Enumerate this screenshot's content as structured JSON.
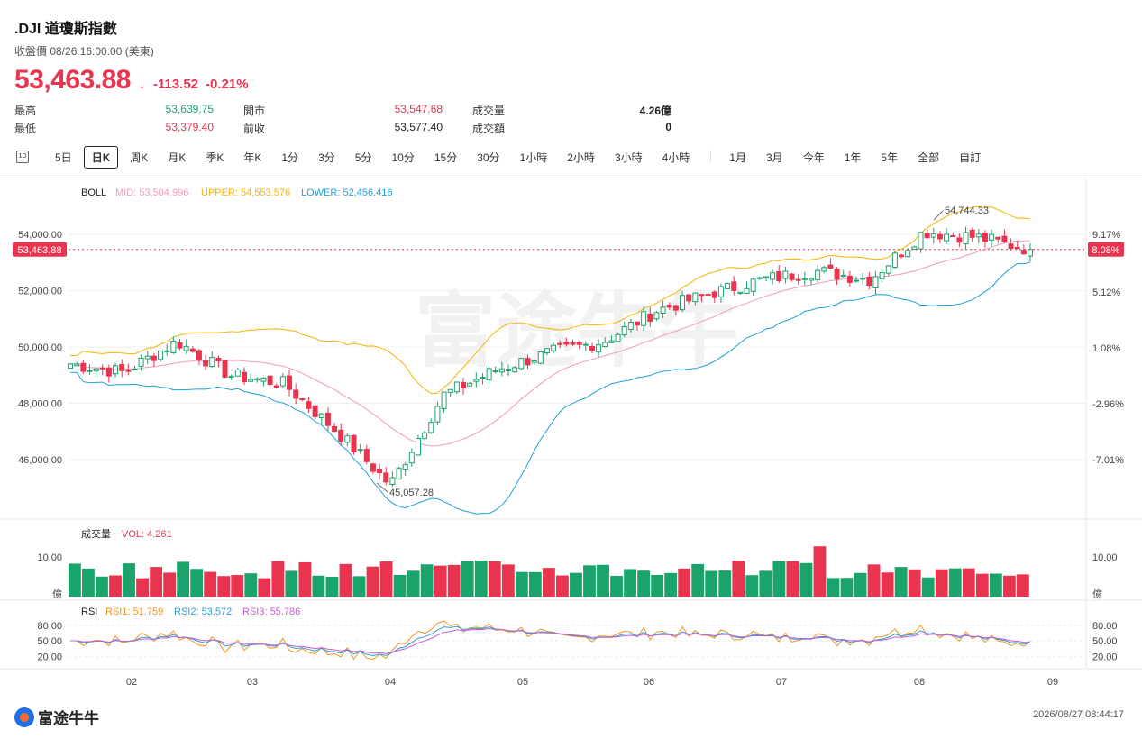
{
  "header": {
    "title": ".DJI  道瓊斯指數",
    "subtitle": "收盤價 08/26 16:00:00 (美東)",
    "price": "53,463.88",
    "arrow": "↓",
    "change": "-113.52",
    "change_pct": "-0.21%"
  },
  "stats": {
    "high_label": "最高",
    "high_value": "53,639.75",
    "low_label": "最低",
    "low_value": "53,379.40",
    "open_label": "開市",
    "open_value": "53,547.68",
    "prev_label": "前收",
    "prev_value": "53,577.40",
    "volume_label": "成交量",
    "volume_value": "4.26億",
    "turnover_label": "成交額",
    "turnover_value": "0"
  },
  "tabs": {
    "icon_label": "1D",
    "items": [
      "5日",
      "日K",
      "周K",
      "月K",
      "季K",
      "年K",
      "1分",
      "3分",
      "5分",
      "10分",
      "15分",
      "30分",
      "1小時",
      "2小時",
      "3小時",
      "4小時"
    ],
    "range_items": [
      "1月",
      "3月",
      "今年",
      "1年",
      "5年",
      "全部",
      "自訂"
    ],
    "active": "日K"
  },
  "boll_legend": {
    "name": "BOLL",
    "mid": "MID: 53,504.996",
    "upper": "UPPER: 54,553.576",
    "lower": "LOWER: 52,456.416"
  },
  "vol_legend": {
    "name": "成交量",
    "vol": "VOL: 4.261"
  },
  "rsi_legend": {
    "name": "RSI",
    "rsi1": "RSI1: 51.759",
    "rsi2": "RSI2: 53.572",
    "rsi3": "RSI3: 55.786"
  },
  "price_axis": {
    "left_ticks": [
      "54,000.00",
      "52,000.00",
      "50,000.00",
      "48,000.00",
      "46,000.00"
    ],
    "right_ticks": [
      "9.17%",
      "5.12%",
      "1.08%",
      "-2.96%",
      "-7.01%"
    ],
    "current_label_left": "53,463.88",
    "current_label_right": "8.08%",
    "max_annotation": "54,744.33",
    "min_annotation": "45,057.28"
  },
  "volume_axis": {
    "top_label": "10.00",
    "unit_label": "億"
  },
  "rsi_axis": {
    "ticks": [
      "80.00",
      "50.00",
      "20.00"
    ]
  },
  "x_axis": {
    "ticks": [
      "02",
      "03",
      "04",
      "05",
      "06",
      "07",
      "08",
      "09"
    ]
  },
  "colors": {
    "up": "#1aa36b",
    "down": "#e8344e",
    "mid": "#f29bb5",
    "upper": "#f5b300",
    "lower": "#1ea0dc",
    "rsi1": "#f0961e",
    "rsi2": "#2f9bd6",
    "rsi3": "#c55fcf"
  },
  "footer": {
    "brand": "富途牛牛",
    "timestamp": "2026/08/27 08:44:17"
  },
  "chart_data": {
    "type": "candlestick",
    "price_range": [
      44500,
      55200
    ],
    "current_price": 53463.88,
    "series_summary": [
      {
        "date": "01-15",
        "close": 49400
      },
      {
        "date": "02-01",
        "close": 49100
      },
      {
        "date": "02-10",
        "close": 50200
      },
      {
        "date": "02-20",
        "close": 49000
      },
      {
        "date": "03-01",
        "close": 48700
      },
      {
        "date": "03-15",
        "close": 47000
      },
      {
        "date": "03-31",
        "close": 45100
      },
      {
        "date": "04-10",
        "close": 48300
      },
      {
        "date": "04-25",
        "close": 49200
      },
      {
        "date": "05-10",
        "close": 49800
      },
      {
        "date": "05-25",
        "close": 50200
      },
      {
        "date": "06-05",
        "close": 51300
      },
      {
        "date": "06-20",
        "close": 51900
      },
      {
        "date": "07-01",
        "close": 52400
      },
      {
        "date": "07-15",
        "close": 52700
      },
      {
        "date": "07-31",
        "close": 52400
      },
      {
        "date": "08-05",
        "close": 54100
      },
      {
        "date": "08-15",
        "close": 53900
      },
      {
        "date": "08-26",
        "close": 53463.88
      }
    ]
  }
}
